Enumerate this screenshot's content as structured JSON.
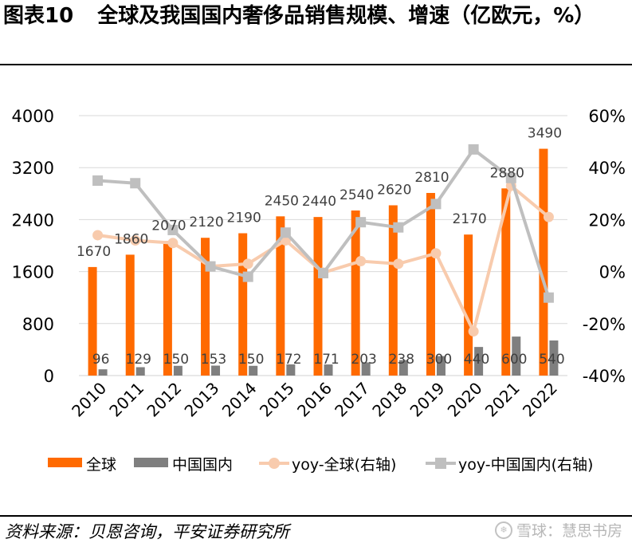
{
  "figure": {
    "label": "图表10",
    "title": "全球及我国国内奢侈品销售规模、增速（亿欧元，%）",
    "source": "资料来源：贝恩咨询，平安证券研究所",
    "watermark": "雪球：慧思书房",
    "watermark_icon": "snowball-logo-icon"
  },
  "chart_data": {
    "type": "bar",
    "categories": [
      "2010",
      "2011",
      "2012",
      "2013",
      "2014",
      "2015",
      "2016",
      "2017",
      "2018",
      "2019",
      "2020",
      "2021",
      "2022"
    ],
    "series": [
      {
        "name": "全球",
        "type": "bar",
        "axis": "left",
        "color": "#ff6a00",
        "values": [
          1670,
          1860,
          2070,
          2120,
          2190,
          2450,
          2440,
          2540,
          2620,
          2810,
          2170,
          2880,
          3490
        ]
      },
      {
        "name": "中国国内",
        "type": "bar",
        "axis": "left",
        "color": "#7f7f7f",
        "values": [
          96,
          129,
          150,
          153,
          150,
          172,
          171,
          203,
          238,
          300,
          440,
          600,
          540
        ]
      },
      {
        "name": "yoy-全球(右轴)",
        "type": "line",
        "axis": "right",
        "color": "#f8cbad",
        "values": [
          14,
          12,
          11,
          2,
          3,
          12,
          -0.4,
          4,
          3,
          7,
          -23,
          33,
          21
        ]
      },
      {
        "name": "yoy-中国国内(右轴)",
        "type": "line",
        "axis": "right",
        "color": "#bfbfbf",
        "values": [
          35,
          34,
          16,
          2,
          -2,
          15,
          -0.6,
          19,
          17,
          26,
          47,
          36,
          -10
        ]
      }
    ],
    "ylim": [
      0,
      4000
    ],
    "yticks": [
      "0",
      "800",
      "1600",
      "2400",
      "3200",
      "4000"
    ],
    "y2lim": [
      -40,
      60
    ],
    "y2ticks": [
      "-40%",
      "-20%",
      "0%",
      "20%",
      "40%",
      "60%"
    ],
    "grid": true,
    "legend": "bottom"
  }
}
